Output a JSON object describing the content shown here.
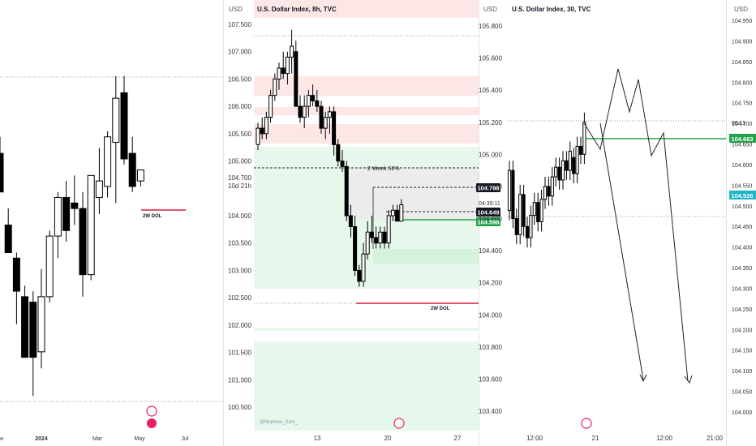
{
  "chart_data": [
    {
      "type": "candlestick",
      "title": "",
      "timeframe": "weekly",
      "x_tick_labels": [
        "ov",
        "2024",
        "Mar",
        "May",
        "Jul"
      ],
      "ylim": [
        100.2,
        107.9
      ],
      "candles": [
        {
          "o": 105.1,
          "h": 105.4,
          "l": 104.4,
          "c": 104.4
        },
        {
          "o": 103.8,
          "h": 104.1,
          "l": 103.3,
          "c": 103.3
        },
        {
          "o": 103.2,
          "h": 103.3,
          "l": 102.0,
          "c": 102.6
        },
        {
          "o": 102.5,
          "h": 102.7,
          "l": 101.4,
          "c": 101.4
        },
        {
          "o": 102.4,
          "h": 102.6,
          "l": 100.7,
          "c": 101.4
        },
        {
          "o": 101.5,
          "h": 103.0,
          "l": 101.2,
          "c": 102.5
        },
        {
          "o": 102.5,
          "h": 103.7,
          "l": 102.4,
          "c": 103.6
        },
        {
          "o": 103.6,
          "h": 104.4,
          "l": 103.2,
          "c": 104.3
        },
        {
          "o": 104.3,
          "h": 104.6,
          "l": 103.5,
          "c": 103.7
        },
        {
          "o": 104.2,
          "h": 104.7,
          "l": 103.8,
          "c": 104.1
        },
        {
          "o": 104.1,
          "h": 104.4,
          "l": 102.5,
          "c": 102.9
        },
        {
          "o": 102.9,
          "h": 104.7,
          "l": 102.8,
          "c": 104.7
        },
        {
          "o": 104.3,
          "h": 105.2,
          "l": 104.0,
          "c": 104.6
        },
        {
          "o": 104.5,
          "h": 105.5,
          "l": 104.3,
          "c": 105.4
        },
        {
          "o": 105.3,
          "h": 106.5,
          "l": 104.2,
          "c": 106.1
        },
        {
          "o": 106.2,
          "h": 106.5,
          "l": 104.9,
          "c": 105.0
        },
        {
          "o": 105.1,
          "h": 105.4,
          "l": 104.4,
          "c": 104.5
        },
        {
          "o": 104.6,
          "h": 104.8,
          "l": 104.5,
          "c": 104.8
        }
      ],
      "annotations": [
        {
          "label": "2W DOL",
          "value": 104.55
        }
      ]
    },
    {
      "type": "candlestick",
      "title": "U.S. Dollar Index, 8h, TVC",
      "currency": "USD",
      "y_tick_labels": [
        "107.500",
        "107.000",
        "106.500",
        "106.000",
        "105.500",
        "105.000",
        "104.700",
        "104.000",
        "103.500",
        "103.000",
        "102.500",
        "102.000",
        "101.500",
        "101.000",
        "100.500"
      ],
      "y_tick_values": [
        107.5,
        107.0,
        106.5,
        106.0,
        105.5,
        105.0,
        104.7,
        104.0,
        103.5,
        103.0,
        102.5,
        102.0,
        101.5,
        101.0,
        100.5
      ],
      "x_tick_labels": [
        "13",
        "20",
        "27"
      ],
      "ylim": [
        100.3,
        107.9
      ],
      "candles": [
        {
          "o": 105.3,
          "h": 105.7,
          "l": 105.2,
          "c": 105.6
        },
        {
          "o": 105.6,
          "h": 105.8,
          "l": 105.4,
          "c": 105.5
        },
        {
          "o": 105.5,
          "h": 105.9,
          "l": 105.4,
          "c": 105.8
        },
        {
          "o": 105.8,
          "h": 106.3,
          "l": 105.7,
          "c": 106.2
        },
        {
          "o": 106.2,
          "h": 106.6,
          "l": 106.1,
          "c": 106.5
        },
        {
          "o": 106.5,
          "h": 106.8,
          "l": 106.3,
          "c": 106.7
        },
        {
          "o": 106.7,
          "h": 107.0,
          "l": 106.5,
          "c": 106.6
        },
        {
          "o": 106.6,
          "h": 107.0,
          "l": 106.4,
          "c": 106.9
        },
        {
          "o": 106.9,
          "h": 107.4,
          "l": 106.6,
          "c": 107.1
        },
        {
          "o": 107.0,
          "h": 107.2,
          "l": 106.0,
          "c": 106.0
        },
        {
          "o": 106.0,
          "h": 106.2,
          "l": 105.7,
          "c": 105.8
        },
        {
          "o": 105.8,
          "h": 106.2,
          "l": 105.6,
          "c": 106.0
        },
        {
          "o": 106.0,
          "h": 106.3,
          "l": 105.8,
          "c": 106.2
        },
        {
          "o": 106.2,
          "h": 106.4,
          "l": 106.0,
          "c": 106.1
        },
        {
          "o": 106.1,
          "h": 106.3,
          "l": 105.9,
          "c": 106.0
        },
        {
          "o": 106.0,
          "h": 106.1,
          "l": 105.5,
          "c": 105.6
        },
        {
          "o": 105.6,
          "h": 105.9,
          "l": 105.4,
          "c": 105.8
        },
        {
          "o": 105.8,
          "h": 106.0,
          "l": 105.5,
          "c": 105.9
        },
        {
          "o": 105.9,
          "h": 106.0,
          "l": 105.1,
          "c": 105.3
        },
        {
          "o": 105.3,
          "h": 105.4,
          "l": 104.9,
          "c": 105.0
        },
        {
          "o": 105.0,
          "h": 105.2,
          "l": 104.8,
          "c": 104.9
        },
        {
          "o": 104.9,
          "h": 105.0,
          "l": 103.9,
          "c": 104.0
        },
        {
          "o": 104.0,
          "h": 104.2,
          "l": 103.6,
          "c": 103.8
        },
        {
          "o": 103.8,
          "h": 104.0,
          "l": 102.9,
          "c": 103.0
        },
        {
          "o": 103.0,
          "h": 103.1,
          "l": 102.7,
          "c": 102.8
        },
        {
          "o": 102.8,
          "h": 103.5,
          "l": 102.7,
          "c": 103.3
        },
        {
          "o": 103.3,
          "h": 103.9,
          "l": 103.2,
          "c": 103.7
        },
        {
          "o": 103.7,
          "h": 104.0,
          "l": 103.5,
          "c": 103.6
        },
        {
          "o": 103.6,
          "h": 103.8,
          "l": 103.4,
          "c": 103.5
        },
        {
          "o": 103.5,
          "h": 103.8,
          "l": 103.4,
          "c": 103.7
        },
        {
          "o": 103.7,
          "h": 103.8,
          "l": 103.4,
          "c": 103.5
        },
        {
          "o": 103.5,
          "h": 104.1,
          "l": 103.4,
          "c": 104.0
        },
        {
          "o": 104.0,
          "h": 104.2,
          "l": 103.9,
          "c": 104.1
        },
        {
          "o": 104.1,
          "h": 104.2,
          "l": 103.9,
          "c": 103.9
        },
        {
          "o": 103.9,
          "h": 104.3,
          "l": 103.9,
          "c": 104.2
        }
      ],
      "levels": [
        {
          "label": "2 Week 50%",
          "value": 104.9
        },
        {
          "label": "",
          "value": 104.798
        },
        {
          "label": "",
          "value": 104.649
        },
        {
          "label": "",
          "value": 104.596
        },
        {
          "label": "2W DOL",
          "value": 102.45
        }
      ],
      "price_labels": [
        "104.798",
        "104.649",
        "104.596"
      ],
      "countdown": "10d 21h",
      "watermark": "@Nephew_Sam_"
    },
    {
      "type": "line",
      "title": "U.S. Dollar Index, 30, TVC",
      "currency": "USD",
      "y_tick_labels": [
        "105.800",
        "105.600",
        "105.400",
        "105.200",
        "105.000",
        "104.800",
        "104.600",
        "104.400",
        "104.200",
        "104.000",
        "103.800",
        "103.600",
        "103.400"
      ],
      "y_tick_values": [
        105.8,
        105.6,
        105.4,
        105.2,
        105.0,
        104.8,
        104.6,
        104.4,
        104.2,
        104.0,
        103.8,
        103.6,
        103.4
      ],
      "x_tick_labels": [
        "12:00",
        "21",
        "12:00",
        "21:00"
      ],
      "price_labels": [
        "104.649"
      ],
      "countdown": "04:39:11"
    },
    {
      "type": "projection",
      "title": "",
      "currency": "USD",
      "y_tick_labels": [
        "104.950",
        "104.900",
        "104.850",
        "104.800",
        "104.750",
        "104.700",
        "104.650",
        "104.600",
        "104.550",
        "104.500",
        "104.450",
        "104.400",
        "104.350",
        "104.300",
        "104.250",
        "104.200",
        "104.150",
        "104.100",
        "104.050",
        "104.000"
      ],
      "y_tick_values": [
        104.95,
        104.9,
        104.85,
        104.8,
        104.75,
        104.7,
        104.65,
        104.6,
        104.55,
        104.5,
        104.45,
        104.4,
        104.35,
        104.3,
        104.25,
        104.2,
        104.15,
        104.1,
        104.05,
        104.0
      ],
      "price_labels": [
        "104.663",
        "104.526"
      ],
      "countdown": "09:11"
    }
  ],
  "colors": {
    "up_body": "#ffffff",
    "down_body": "#000000",
    "red_zone": "#fde6e6",
    "green_zone": "#e6f8ec",
    "gray_zone": "#ececec",
    "green_line": "#22a34b",
    "red_line": "#d81b3e",
    "teal_label": "#22b5c4"
  }
}
